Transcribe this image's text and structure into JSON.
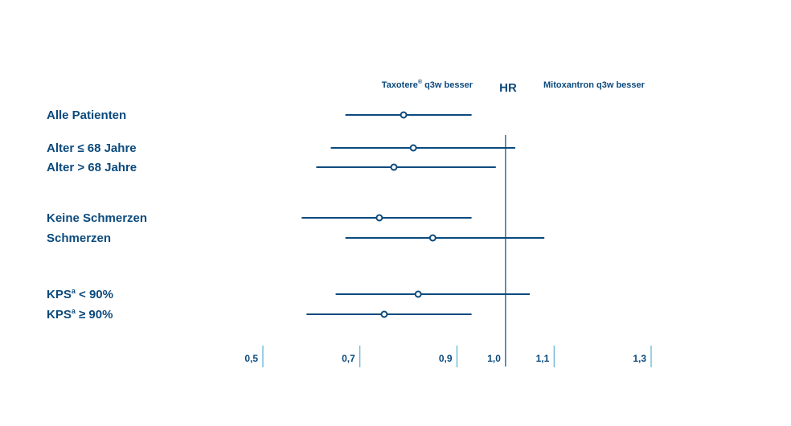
{
  "chart_data": {
    "type": "forest",
    "header_left": "Taxotere",
    "header_left_sup": "®",
    "header_left_suffix": " q3w besser",
    "header_right": "Mitoxantron q3w besser",
    "axis_label": "HR",
    "reference_line": 1.0,
    "x_range": [
      0.5,
      1.3
    ],
    "ticks": [
      {
        "value": 0.5,
        "label": "0,5"
      },
      {
        "value": 0.7,
        "label": "0,7"
      },
      {
        "value": 0.9,
        "label": "0,9"
      },
      {
        "value": 1.0,
        "label": "1,0"
      },
      {
        "value": 1.1,
        "label": "1,1"
      },
      {
        "value": 1.3,
        "label": "1,3"
      }
    ],
    "rows": [
      {
        "label": "Alle Patienten",
        "hr": 0.79,
        "lower": 0.67,
        "upper": 0.93
      },
      {
        "label": "Alter ≤ 68 Jahre",
        "hr": 0.81,
        "lower": 0.64,
        "upper": 1.02
      },
      {
        "label": "Alter > 68 Jahre",
        "hr": 0.77,
        "lower": 0.61,
        "upper": 0.98
      },
      {
        "label": "Keine Schmerzen",
        "hr": 0.74,
        "lower": 0.58,
        "upper": 0.93
      },
      {
        "label": "Schmerzen",
        "hr": 0.85,
        "lower": 0.67,
        "upper": 1.08
      },
      {
        "label": "KPS",
        "label_sup": "a",
        "label_suffix": " < 90%",
        "hr": 0.82,
        "lower": 0.65,
        "upper": 1.05
      },
      {
        "label": "KPS",
        "label_sup": "a",
        "label_suffix": " ≥ 90%",
        "hr": 0.75,
        "lower": 0.59,
        "upper": 0.93
      }
    ]
  },
  "colors": {
    "primary": "#0b4a7d",
    "tick": "#3aa0c8"
  }
}
